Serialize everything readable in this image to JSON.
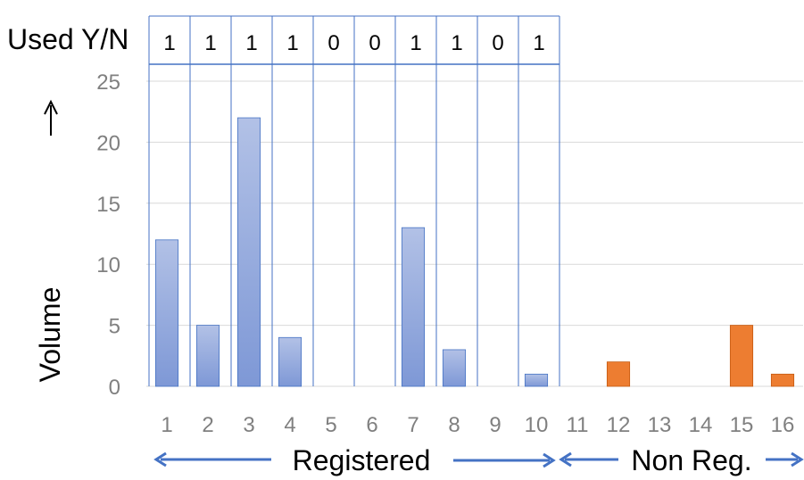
{
  "chart_data": {
    "type": "bar",
    "categories": [
      "1",
      "2",
      "3",
      "4",
      "5",
      "6",
      "7",
      "8",
      "9",
      "10",
      "11",
      "12",
      "13",
      "14",
      "15",
      "16"
    ],
    "values": [
      12,
      5,
      22,
      4,
      0,
      0,
      13,
      3,
      0,
      1,
      0,
      2,
      0,
      0,
      5,
      1
    ],
    "ylabel": "Volume",
    "ylim": [
      0,
      25
    ],
    "yticks": [
      0,
      5,
      10,
      15,
      20,
      25
    ],
    "grid": true,
    "used_label": "Used Y/N",
    "used_values": [
      "1",
      "1",
      "1",
      "1",
      "0",
      "0",
      "1",
      "1",
      "0",
      "1"
    ],
    "groups": [
      {
        "label": "Registered",
        "categories": [
          "1",
          "2",
          "3",
          "4",
          "5",
          "6",
          "7",
          "8",
          "9",
          "10"
        ],
        "color": "#8fa8dc"
      },
      {
        "label": "Non Reg.",
        "categories": [
          "11",
          "12",
          "13",
          "14",
          "15",
          "16"
        ],
        "color": "#ed7d31"
      }
    ]
  }
}
